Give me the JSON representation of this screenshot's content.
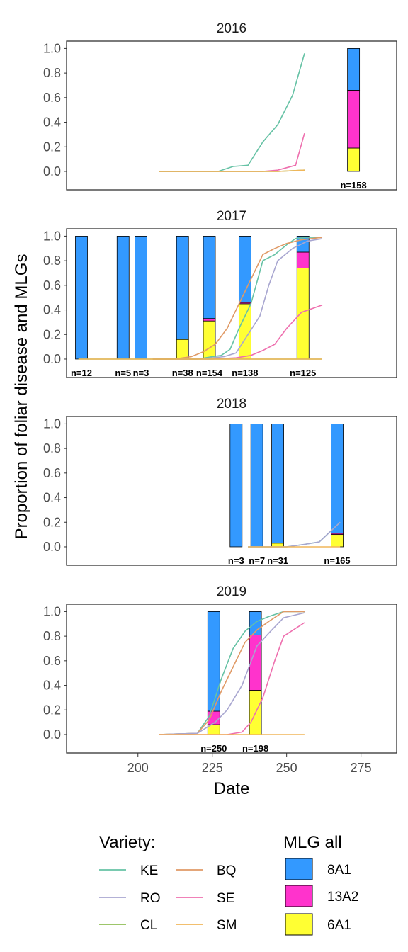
{
  "chart_data": {
    "type": "bar+line",
    "xlabel": "Date",
    "ylabel": "Proportion of foliar disease and MLGs",
    "xlim": [
      176,
      287
    ],
    "ylim": [
      -0.15,
      1.06
    ],
    "x_ticks": [
      200,
      225,
      250,
      275
    ],
    "y_ticks": [
      0.0,
      0.2,
      0.4,
      0.6,
      0.8,
      1.0
    ],
    "line_legend_title": "Variety:",
    "fill_legend_title": "MLG all",
    "varieties": [
      {
        "name": "KE",
        "color": "#66c2a5"
      },
      {
        "name": "RO",
        "color": "#a8a6d0"
      },
      {
        "name": "CL",
        "color": "#8fbe55"
      },
      {
        "name": "BQ",
        "color": "#e09a66"
      },
      {
        "name": "SE",
        "color": "#ee6fae"
      },
      {
        "name": "SM",
        "color": "#f0b65a"
      }
    ],
    "mlgs": [
      {
        "name": "8A1",
        "color": "#3399ff"
      },
      {
        "name": "13A2",
        "color": "#ff33cc"
      },
      {
        "name": "6A1",
        "color": "#ffff33"
      }
    ],
    "panels": [
      {
        "year": "2016",
        "lines": [
          {
            "variety": "KE",
            "x": [
              207,
              213,
              218,
              223,
              227,
              232,
              237,
              242,
              247,
              252,
              256,
              260
            ],
            "y": [
              0,
              0,
              0,
              0,
              0,
              0.04,
              0.05,
              0.24,
              0.38,
              0.62,
              0.96,
              null
            ]
          },
          {
            "variety": "SE",
            "x": [
              207,
              223,
              237,
              242,
              247,
              253,
              256,
              260
            ],
            "y": [
              0,
              0,
              0,
              0,
              0.01,
              0.05,
              0.31,
              null
            ]
          },
          {
            "variety": "CL",
            "x": [
              207,
              223,
              237,
              247,
              256
            ],
            "y": [
              0,
              0,
              0,
              0,
              0.01
            ]
          },
          {
            "variety": "SM",
            "x": [
              207,
              223,
              237,
              247,
              256
            ],
            "y": [
              0,
              0,
              0,
              0,
              0.01
            ]
          }
        ],
        "bars": [
          {
            "x": 272.5,
            "n": "n=158",
            "props": {
              "6A1": 0.19,
              "13A2": 0.47,
              "8A1": 0.34
            }
          }
        ]
      },
      {
        "year": "2017",
        "lines": [
          {
            "variety": "KE",
            "x": [
              205,
              213,
              220,
              225,
              228,
              231,
              234,
              238,
              242,
              246,
              250,
              253,
              257,
              262
            ],
            "y": [
              0,
              0,
              0,
              0.02,
              0.03,
              0.08,
              0.25,
              0.45,
              0.8,
              0.85,
              0.93,
              0.98,
              0.99,
              0.99
            ]
          },
          {
            "variety": "RO",
            "x": [
              205,
              213,
              220,
              225,
              229,
              233,
              237,
              241,
              244,
              247,
              252,
              257,
              262
            ],
            "y": [
              0,
              0,
              0,
              0.01,
              0.02,
              0.05,
              0.2,
              0.35,
              0.6,
              0.8,
              0.9,
              0.96,
              0.98
            ]
          },
          {
            "variety": "BQ",
            "x": [
              205,
              212,
              218,
              222,
              226,
              230,
              234,
              238,
              242,
              246,
              250,
              255,
              262
            ],
            "y": [
              0,
              0,
              0.02,
              0.06,
              0.12,
              0.25,
              0.45,
              0.65,
              0.85,
              0.9,
              0.94,
              0.97,
              0.99
            ]
          },
          {
            "variety": "SE",
            "x": [
              205,
              225,
              233,
              238,
              242,
              246,
              250,
              255,
              262
            ],
            "y": [
              0,
              0,
              0.01,
              0.03,
              0.07,
              0.12,
              0.25,
              0.38,
              0.44
            ]
          },
          {
            "variety": "CL",
            "x": [
              180,
              225,
              262
            ],
            "y": [
              0,
              0,
              0
            ]
          },
          {
            "variety": "SM",
            "x": [
              180,
              225,
              262
            ],
            "y": [
              0,
              0,
              0
            ]
          }
        ],
        "bars": [
          {
            "x": 181,
            "n": "n=12",
            "props": {
              "6A1": 0,
              "13A2": 0,
              "8A1": 1
            }
          },
          {
            "x": 195,
            "n": "n=5",
            "props": {
              "6A1": 0,
              "13A2": 0,
              "8A1": 1
            }
          },
          {
            "x": 201,
            "n": "n=3",
            "props": {
              "6A1": 0,
              "13A2": 0,
              "8A1": 1
            }
          },
          {
            "x": 215,
            "n": "n=38",
            "props": {
              "6A1": 0.16,
              "13A2": 0,
              "8A1": 0.84
            }
          },
          {
            "x": 224,
            "n": "n=154",
            "props": {
              "6A1": 0.31,
              "13A2": 0.02,
              "8A1": 0.67
            }
          },
          {
            "x": 236,
            "n": "n=138",
            "props": {
              "6A1": 0.45,
              "13A2": 0.01,
              "8A1": 0.54
            }
          },
          {
            "x": 255.5,
            "n": "n=125",
            "props": {
              "6A1": 0.74,
              "13A2": 0.13,
              "8A1": 0.13
            }
          }
        ]
      },
      {
        "year": "2018",
        "lines": [
          {
            "variety": "KE",
            "x": [
              237,
              250,
              256,
              261,
              268
            ],
            "y": [
              0,
              0,
              0.02,
              0.04,
              0.2
            ]
          },
          {
            "variety": "RO",
            "x": [
              237,
              250,
              256,
              261,
              268
            ],
            "y": [
              0,
              0,
              0.02,
              0.04,
              0.2
            ]
          },
          {
            "variety": "SM",
            "x": [
              237,
              250,
              268
            ],
            "y": [
              0,
              0,
              0
            ]
          }
        ],
        "bars": [
          {
            "x": 233,
            "n": "n=3",
            "props": {
              "6A1": 0,
              "13A2": 0,
              "8A1": 1
            }
          },
          {
            "x": 240,
            "n": "n=7",
            "props": {
              "6A1": 0,
              "13A2": 0,
              "8A1": 1
            }
          },
          {
            "x": 247,
            "n": "n=31",
            "props": {
              "6A1": 0.03,
              "13A2": 0,
              "8A1": 0.97
            }
          },
          {
            "x": 267,
            "n": "n=165",
            "props": {
              "6A1": 0.1,
              "13A2": 0.01,
              "8A1": 0.89
            }
          }
        ]
      },
      {
        "year": "2019",
        "lines": [
          {
            "variety": "KE",
            "x": [
              207,
              220,
              224,
              228,
              232,
              236,
              240,
              244,
              249,
              256
            ],
            "y": [
              0,
              0.01,
              0.15,
              0.45,
              0.7,
              0.84,
              0.92,
              0.96,
              1.0,
              1.0
            ]
          },
          {
            "variety": "BQ",
            "x": [
              207,
              220,
              224,
              228,
              232,
              236,
              240,
              244,
              249,
              256
            ],
            "y": [
              0,
              0.01,
              0.12,
              0.35,
              0.55,
              0.75,
              0.85,
              0.92,
              1.0,
              1.0
            ]
          },
          {
            "variety": "RO",
            "x": [
              207,
              220,
              226,
              230,
              235,
              240,
              245,
              249,
              256
            ],
            "y": [
              0,
              0.01,
              0.1,
              0.2,
              0.4,
              0.72,
              0.85,
              0.95,
              0.99
            ]
          },
          {
            "variety": "SE",
            "x": [
              207,
              230,
              235,
              238,
              242,
              246,
              249,
              256
            ],
            "y": [
              0,
              0,
              0.02,
              0.1,
              0.3,
              0.6,
              0.8,
              0.91
            ]
          },
          {
            "variety": "SM",
            "x": [
              207,
              256
            ],
            "y": [
              0,
              0
            ]
          }
        ],
        "bars": [
          {
            "x": 225.5,
            "n": "n=250",
            "props": {
              "6A1": 0.08,
              "13A2": 0.11,
              "8A1": 0.81
            }
          },
          {
            "x": 239.5,
            "n": "n=198",
            "props": {
              "6A1": 0.36,
              "13A2": 0.45,
              "8A1": 0.19
            }
          }
        ]
      }
    ]
  }
}
